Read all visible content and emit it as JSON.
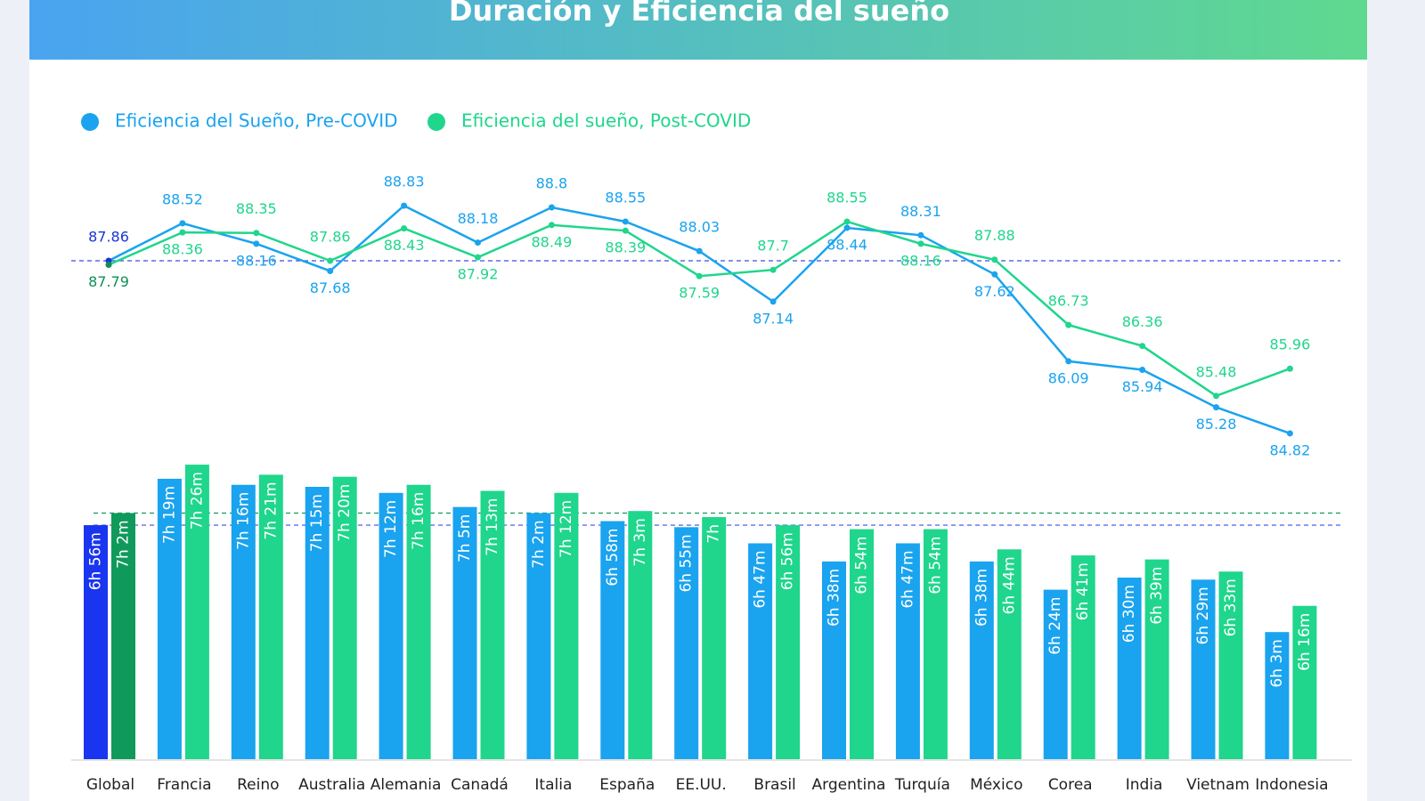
{
  "chart_data": [
    {
      "type": "line",
      "title": "Duración y Eficiencia del sueño",
      "categories": [
        "Global",
        "Francia",
        "Reino",
        "Australia",
        "Alemania",
        "Canadá",
        "Italia",
        "España",
        "EE.UU.",
        "Brasil",
        "Argentina",
        "Turquía",
        "México",
        "Corea",
        "India",
        "Vietnam",
        "Indonesia"
      ],
      "series": [
        {
          "name": "Eficiencia del Sueño, Pre-COVID",
          "color": "#1aa3ef",
          "highlight_color": "#1a35d8",
          "values": [
            87.86,
            88.52,
            88.16,
            87.68,
            88.83,
            88.18,
            88.8,
            88.55,
            88.03,
            87.14,
            88.44,
            88.31,
            87.62,
            86.09,
            85.94,
            85.28,
            84.82
          ]
        },
        {
          "name": "Eficiencia del sueño, Post-COVID",
          "color": "#1fd68c",
          "highlight_color": "#0f8f55",
          "values": [
            87.79,
            88.36,
            88.35,
            87.86,
            88.43,
            87.92,
            88.49,
            88.39,
            87.59,
            87.7,
            88.55,
            88.16,
            87.88,
            86.73,
            86.36,
            85.48,
            85.96
          ]
        }
      ],
      "highlight_index": 0,
      "ylim": [
        84.5,
        89.5
      ],
      "legend": "top-left"
    },
    {
      "type": "bar",
      "categories": [
        "Global",
        "Francia",
        "Reino",
        "Australia",
        "Alemania",
        "Canadá",
        "Italia",
        "España",
        "EE.UU.",
        "Brasil",
        "Argentina",
        "Turquía",
        "México",
        "Corea",
        "India",
        "Vietnam",
        "Indonesia"
      ],
      "series": [
        {
          "color": "#1aa3ef",
          "highlight_color": "#1a35f0",
          "values": [
            416,
            439,
            436,
            435,
            432,
            425,
            422,
            418,
            415,
            407,
            398,
            407,
            398,
            384,
            390,
            389,
            363
          ],
          "value_labels": [
            "6h 56m",
            "7h 19m",
            "7h 16m",
            "7h 15m",
            "7h 12m",
            "7h 5m",
            "7h 2m",
            "6h 58m",
            "6h 55m",
            "6h 47m",
            "6h 38m",
            "6h 47m",
            "6h 38m",
            "6h 24m",
            "6h 30m",
            "6h 29m",
            "6h 3m"
          ]
        },
        {
          "color": "#1fd68c",
          "highlight_color": "#0f9a5c",
          "values": [
            422,
            446,
            441,
            440,
            436,
            433,
            432,
            423,
            420,
            416,
            414,
            414,
            404,
            401,
            399,
            393,
            376
          ],
          "value_labels": [
            "7h 2m",
            "7h 26m",
            "7h 21m",
            "7h 20m",
            "7h 16m",
            "7h 13m",
            "7h 12m",
            "7h 3m",
            "7h",
            "6h 56m",
            "6h 54m",
            "6h 54m",
            "6h 44m",
            "6h 41m",
            "6h 39m",
            "6h 33m",
            "6h 16m"
          ]
        }
      ],
      "highlight_index": 0,
      "ylim": [
        300,
        450
      ]
    }
  ]
}
